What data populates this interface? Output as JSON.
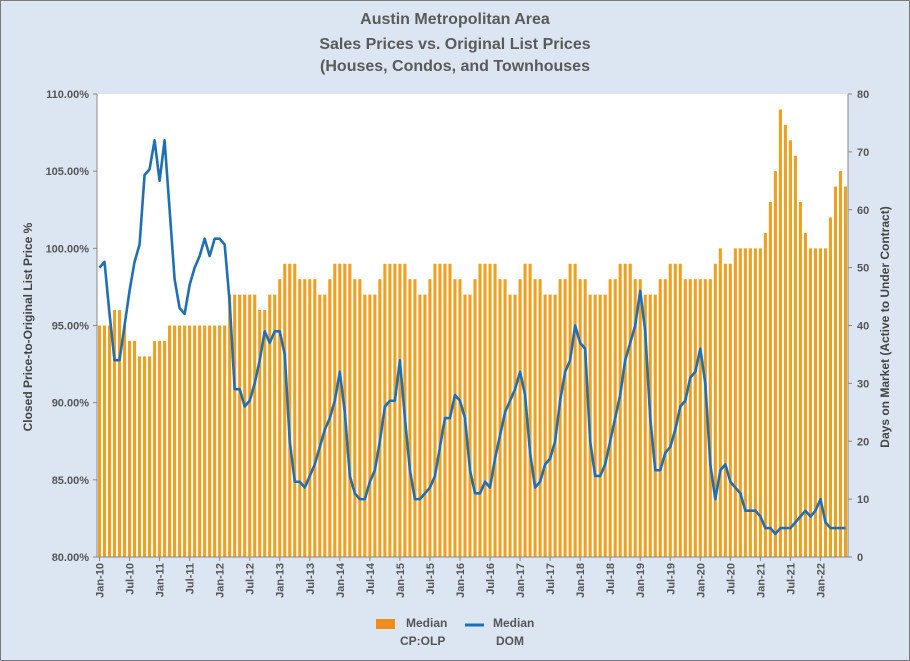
{
  "chart_data": {
    "type": "bar+line",
    "title_lines": [
      "Austin Metropolitan Area",
      "Sales Prices vs. Original List Prices",
      "(Houses, Condos, and Townhouses"
    ],
    "ylabel": "Closed Price-to-Original List Price %",
    "y2label": "Days on Market (Active to Under Contract)",
    "ylim": [
      80,
      110
    ],
    "y_ticks": [
      "80.00%",
      "85.00%",
      "90.00%",
      "95.00%",
      "100.00%",
      "105.00%",
      "110.00%"
    ],
    "y2lim": [
      0,
      80
    ],
    "y2_ticks": [
      "0",
      "10",
      "20",
      "30",
      "40",
      "50",
      "60",
      "70",
      "80"
    ],
    "x_tick_labels": [
      "Jan-10",
      "Jul-10",
      "Jan-11",
      "Jul-11",
      "Jan-12",
      "Jul-12",
      "Jan-13",
      "Jul-13",
      "Jan-14",
      "Jul-14",
      "Jan-15",
      "Jul-15",
      "Jan-16",
      "Jul-16",
      "Jan-17",
      "Jul-17",
      "Jan-18",
      "Jul-18",
      "Jan-19",
      "Jul-19",
      "Jan-20",
      "Jul-20",
      "Jan-21",
      "Jul-21",
      "Jan-22"
    ],
    "start_month": "Jan-10",
    "colors": {
      "bars": "#f0a020",
      "bar_stripe": "#ffd890",
      "line": "#1f6fb5",
      "plot_bg": "#ffffff"
    },
    "series": [
      {
        "name": "Median CP:OLP",
        "kind": "bar",
        "legend_label": [
          "Median",
          "CP:OLP"
        ],
        "values": [
          95,
          95,
          95,
          96,
          96,
          95,
          94,
          94,
          93,
          93,
          93,
          94,
          94,
          94,
          95,
          95,
          95,
          95,
          95,
          95,
          95,
          95,
          95,
          95,
          95,
          95,
          97,
          97,
          97,
          97,
          97,
          97,
          96,
          96,
          97,
          97,
          98,
          99,
          99,
          99,
          98,
          98,
          98,
          98,
          97,
          97,
          98,
          99,
          99,
          99,
          99,
          98,
          98,
          97,
          97,
          97,
          98,
          99,
          99,
          99,
          99,
          99,
          98,
          98,
          97,
          97,
          98,
          99,
          99,
          99,
          99,
          98,
          98,
          97,
          97,
          98,
          99,
          99,
          99,
          99,
          98,
          98,
          97,
          97,
          98,
          99,
          99,
          98,
          98,
          97,
          97,
          97,
          98,
          98,
          99,
          99,
          98,
          98,
          97,
          97,
          97,
          97,
          98,
          98,
          99,
          99,
          99,
          98,
          98,
          97,
          97,
          97,
          98,
          98,
          99,
          99,
          99,
          98,
          98,
          98,
          98,
          98,
          98,
          99,
          100,
          99,
          99,
          100,
          100,
          100,
          100,
          100,
          100,
          101,
          103,
          105,
          109,
          108,
          107,
          106,
          103,
          101,
          100,
          100,
          100,
          100,
          102,
          104,
          105,
          104
        ]
      },
      {
        "name": "Median DOM",
        "kind": "line",
        "axis": "secondary",
        "legend_label": [
          "Median",
          "DOM"
        ],
        "values": [
          50,
          51,
          42,
          34,
          34,
          40,
          46,
          51,
          54,
          66,
          67,
          72,
          65,
          72,
          60,
          48,
          43,
          42,
          47,
          50,
          52,
          55,
          52,
          55,
          55,
          54,
          44,
          29,
          29,
          26,
          27,
          30,
          34,
          39,
          37,
          39,
          39,
          35,
          20,
          13,
          13,
          12,
          14,
          16,
          19,
          22,
          24,
          27,
          32,
          25,
          14,
          11,
          10,
          10,
          13,
          15,
          20,
          26,
          27,
          27,
          34,
          24,
          15,
          10,
          10,
          11,
          12,
          14,
          19,
          24,
          24,
          28,
          27,
          24,
          15,
          11,
          11,
          13,
          12,
          17,
          21,
          25,
          27,
          29,
          32,
          28,
          18,
          12,
          13,
          16,
          17,
          20,
          27,
          32,
          34,
          40,
          37,
          36,
          20,
          14,
          14,
          16,
          20,
          24,
          28,
          34,
          37,
          40,
          46,
          39,
          24,
          15,
          15,
          18,
          19,
          22,
          26,
          27,
          31,
          32,
          36,
          30,
          16,
          10,
          15,
          16,
          13,
          12,
          11,
          8,
          8,
          8,
          7,
          5,
          5,
          4,
          5,
          5,
          5,
          6,
          7,
          8,
          7,
          8,
          10,
          6,
          5,
          5,
          5,
          5
        ]
      }
    ],
    "legend_position": "bottom"
  }
}
